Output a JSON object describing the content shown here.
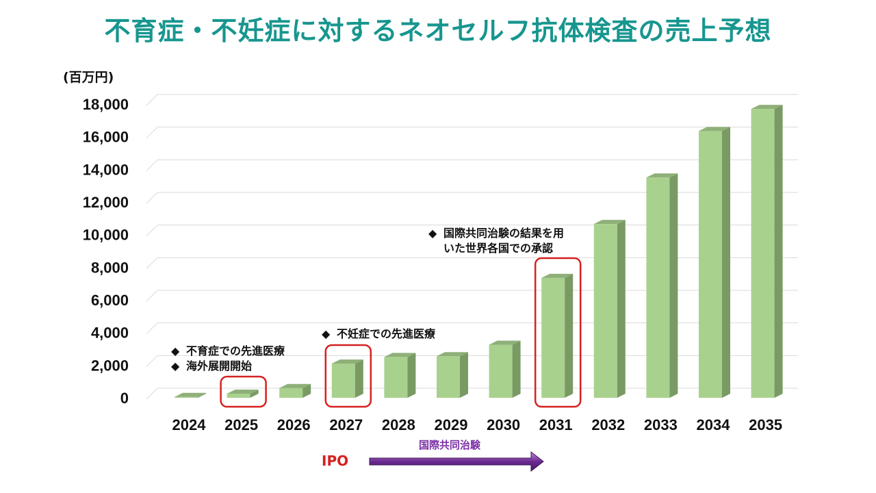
{
  "title": "不育症・不妊症に対するネオセルフ抗体検査の売上予想",
  "chart_data": {
    "type": "bar",
    "title": "不育症・不妊症に対するネオセルフ抗体検査の売上予想",
    "ylabel": "(百万円)",
    "xlabel": "",
    "categories": [
      "2024",
      "2025",
      "2026",
      "2027",
      "2028",
      "2029",
      "2030",
      "2031",
      "2032",
      "2033",
      "2034",
      "2035"
    ],
    "values": [
      50,
      250,
      600,
      2100,
      2500,
      2550,
      3250,
      7350,
      10650,
      13500,
      16350,
      17700
    ],
    "ylim": [
      0,
      18000
    ],
    "yticks": [
      0,
      2000,
      4000,
      6000,
      8000,
      10000,
      12000,
      14000,
      16000,
      18000
    ],
    "ytick_labels": [
      "0",
      "2,000",
      "4,000",
      "6,000",
      "8,000",
      "10,000",
      "12,000",
      "14,000",
      "16,000",
      "18,000"
    ],
    "grid": true,
    "colors": {
      "bar_front": "#a9d18e",
      "bar_side": "#7a9a64",
      "bar_top": "#8fb079",
      "grid": "#d9d9d9",
      "highlight": "#d62020"
    },
    "highlighted_categories": [
      "2025",
      "2027",
      "2031"
    ]
  },
  "annotations": {
    "a2025_line1": "不育症での先進医療",
    "a2025_line2": "海外展開開始",
    "a2027_line1": "不妊症での先進医療",
    "a2031_line1": "国際共同治験の結果を用",
    "a2031_line2": "いた世界各国での承認",
    "bullet": "◆"
  },
  "timeline": {
    "ipo_label": "IPO",
    "trial_label": "国際共同治験",
    "arrow_color": "#6a2a8f"
  }
}
